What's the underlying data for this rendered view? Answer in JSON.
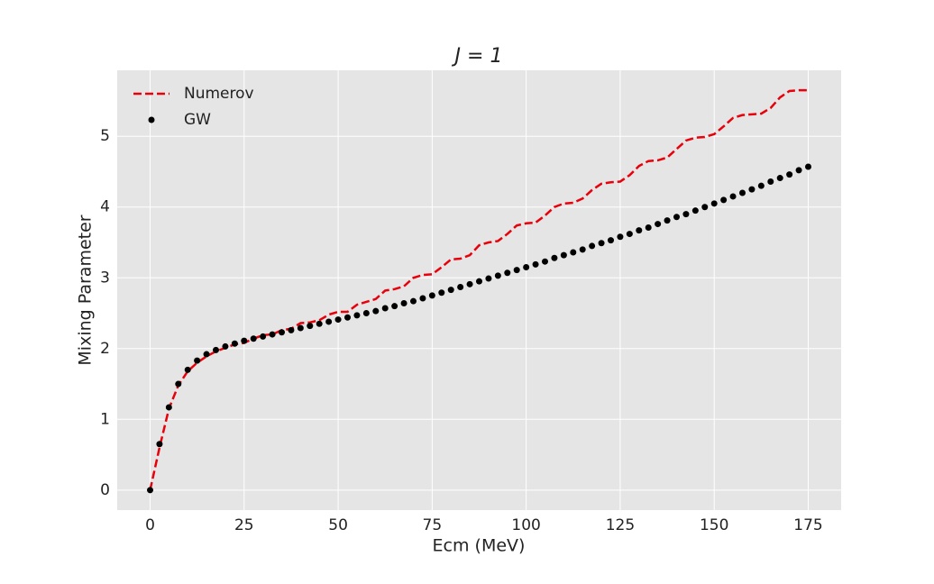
{
  "chart_data": {
    "type": "line",
    "title": "J = 1",
    "x_label": "Ecm (MeV)",
    "y_label": "Mixing Parameter",
    "x": [
      0,
      2.5,
      5,
      7.5,
      10,
      12.5,
      15,
      17.5,
      20,
      22.5,
      25,
      27.5,
      30,
      32.5,
      35,
      37.5,
      40,
      42.5,
      45,
      47.5,
      50,
      52.5,
      55,
      57.5,
      60,
      62.5,
      65,
      67.5,
      70,
      72.5,
      75,
      77.5,
      80,
      82.5,
      85,
      87.5,
      90,
      92.5,
      95,
      97.5,
      100,
      102.5,
      105,
      107.5,
      110,
      112.5,
      115,
      117.5,
      120,
      122.5,
      125,
      127.5,
      130,
      132.5,
      135,
      137.5,
      140,
      142.5,
      145,
      147.5,
      150,
      152.5,
      155,
      157.5,
      160,
      162.5,
      165,
      167.5,
      170,
      172.5,
      175
    ],
    "series": [
      {
        "name": "Numerov",
        "kind": "line",
        "dashed": true,
        "color": "#e8000b",
        "values": [
          0,
          0.6,
          1.15,
          1.48,
          1.68,
          1.8,
          1.89,
          1.96,
          2.01,
          2.06,
          2.08,
          2.14,
          2.19,
          2.2,
          2.26,
          2.28,
          2.36,
          2.37,
          2.4,
          2.48,
          2.52,
          2.52,
          2.62,
          2.66,
          2.7,
          2.82,
          2.84,
          2.88,
          3.0,
          3.04,
          3.05,
          3.15,
          3.26,
          3.27,
          3.32,
          3.46,
          3.5,
          3.52,
          3.62,
          3.74,
          3.77,
          3.78,
          3.88,
          4.0,
          4.05,
          4.06,
          4.12,
          4.24,
          4.33,
          4.35,
          4.36,
          4.45,
          4.58,
          4.65,
          4.66,
          4.7,
          4.82,
          4.94,
          4.98,
          4.99,
          5.03,
          5.14,
          5.26,
          5.3,
          5.31,
          5.32,
          5.4,
          5.55,
          5.64,
          5.65,
          5.65
        ]
      },
      {
        "name": "GW",
        "kind": "scatter",
        "color": "#000000",
        "values": [
          0,
          0.65,
          1.17,
          1.5,
          1.7,
          1.83,
          1.92,
          1.98,
          2.03,
          2.07,
          2.11,
          2.14,
          2.17,
          2.2,
          2.23,
          2.26,
          2.29,
          2.32,
          2.35,
          2.38,
          2.41,
          2.44,
          2.47,
          2.5,
          2.53,
          2.57,
          2.6,
          2.64,
          2.67,
          2.71,
          2.75,
          2.79,
          2.83,
          2.87,
          2.91,
          2.95,
          2.99,
          3.03,
          3.07,
          3.11,
          3.15,
          3.19,
          3.23,
          3.28,
          3.32,
          3.36,
          3.4,
          3.45,
          3.49,
          3.53,
          3.58,
          3.62,
          3.67,
          3.71,
          3.76,
          3.81,
          3.86,
          3.9,
          3.95,
          4.0,
          4.05,
          4.1,
          4.15,
          4.2,
          4.25,
          4.3,
          4.36,
          4.41,
          4.46,
          4.52,
          4.57
        ]
      }
    ],
    "xlim": [
      -8.75,
      183.75
    ],
    "ylim": [
      -0.2825,
      5.9325
    ],
    "xticks": [
      0,
      25,
      50,
      75,
      100,
      125,
      150,
      175
    ],
    "yticks": [
      0,
      1,
      2,
      3,
      4,
      5
    ],
    "grid": true,
    "background": "#e5e5e5",
    "legend": "upper-left"
  }
}
